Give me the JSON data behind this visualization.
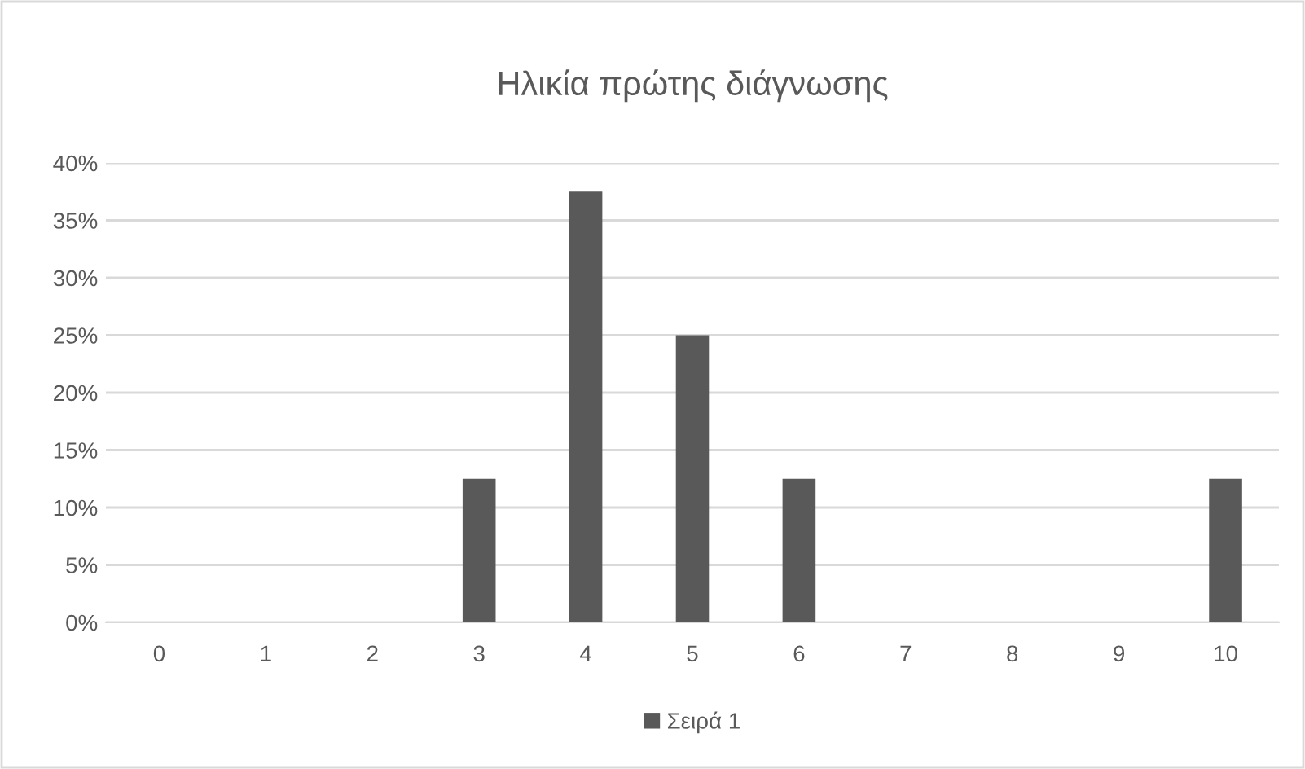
{
  "chart_data": {
    "type": "bar",
    "title": "Ηλικία πρώτης διάγνωσης",
    "categories": [
      "0",
      "1",
      "2",
      "3",
      "4",
      "5",
      "6",
      "7",
      "8",
      "9",
      "10"
    ],
    "series": [
      {
        "name": "Σειρά 1",
        "color": "#595959",
        "values": [
          0,
          0,
          0,
          12.5,
          37.5,
          25,
          12.5,
          0,
          0,
          0,
          12.5
        ]
      }
    ],
    "ylim": [
      0,
      40
    ],
    "yticks": [
      {
        "value": 0,
        "label": "0%"
      },
      {
        "value": 5,
        "label": "5%"
      },
      {
        "value": 10,
        "label": "10%"
      },
      {
        "value": 15,
        "label": "15%"
      },
      {
        "value": 20,
        "label": "20%"
      },
      {
        "value": 25,
        "label": "25%"
      },
      {
        "value": 30,
        "label": "30%"
      },
      {
        "value": 35,
        "label": "35%"
      },
      {
        "value": 40,
        "label": "40%"
      }
    ],
    "grid": "y",
    "legend": "bottom"
  }
}
